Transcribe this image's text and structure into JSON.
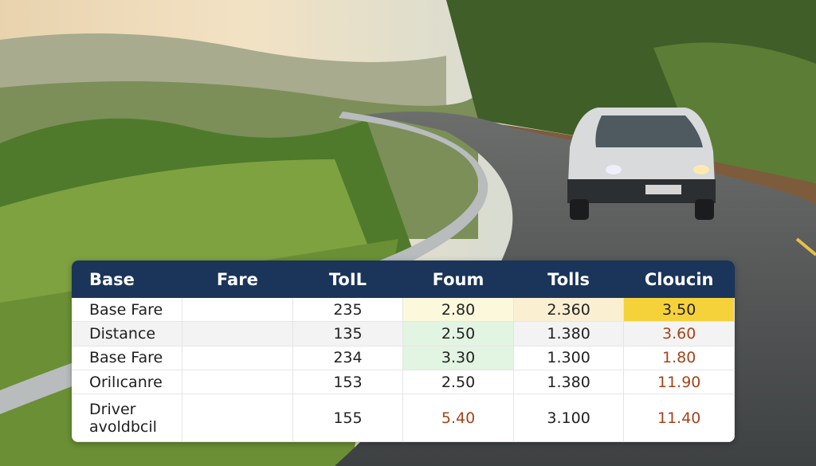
{
  "table": {
    "headers": [
      "Base",
      "Fare",
      "ToIL",
      "Foum",
      "Tolls",
      "Cloucin"
    ],
    "rows": [
      [
        "Base Fare",
        "",
        "235",
        "2.80",
        "2.360",
        "3.50"
      ],
      [
        "Distance",
        "",
        "135",
        "2.50",
        "1.380",
        "3.60"
      ],
      [
        "Base Fare",
        "",
        "234",
        "3.30",
        "1.300",
        "1.80"
      ],
      [
        "Orilıcanre",
        "",
        "153",
        "2.50",
        "1.380",
        "11.90"
      ],
      [
        "Driver avoldbcil",
        "",
        "155",
        "5.40",
        "3.100",
        "11.40"
      ]
    ]
  },
  "colors": {
    "header_bg": "#1b3459",
    "highlight_yellow": "#f6d23a",
    "highlight_green": "#e2f4e2",
    "highlight_cream": "#fbf8dc",
    "warn_text": "#a2451c"
  }
}
